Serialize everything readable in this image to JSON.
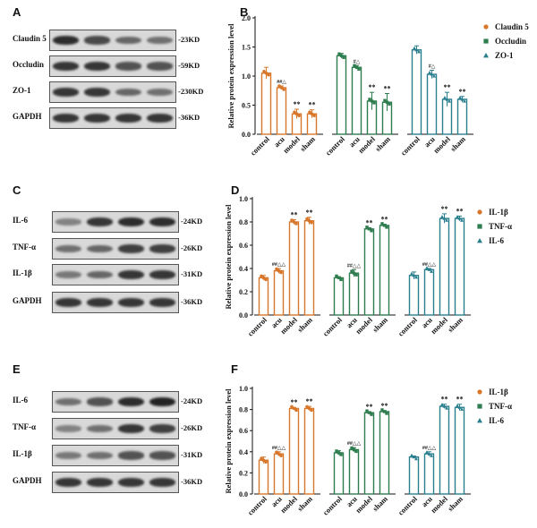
{
  "panels": {
    "A": "A",
    "B": "B",
    "C": "C",
    "D": "D",
    "E": "E",
    "F": "F"
  },
  "blot_x_labels": [
    "control",
    "acu",
    "model",
    "sham"
  ],
  "blot_A": {
    "rows": [
      {
        "label": "Claudin 5",
        "kd": "-23KD"
      },
      {
        "label": "Occludin",
        "kd": "-59KD"
      },
      {
        "label": "ZO-1",
        "kd": "-230KD"
      },
      {
        "label": "GAPDH",
        "kd": "-36KD"
      }
    ],
    "intensity": [
      [
        0.9,
        0.75,
        0.6,
        0.55
      ],
      [
        0.85,
        0.85,
        0.7,
        0.7
      ],
      [
        0.85,
        0.85,
        0.6,
        0.55
      ],
      [
        0.85,
        0.85,
        0.85,
        0.85
      ]
    ]
  },
  "blot_C": {
    "rows": [
      {
        "label": "IL-6",
        "kd": "-24KD"
      },
      {
        "label": "TNF-α",
        "kd": "-26KD"
      },
      {
        "label": "IL-1β",
        "kd": "-31KD"
      },
      {
        "label": "GAPDH",
        "kd": "-36KD"
      }
    ],
    "intensity": [
      [
        0.45,
        0.85,
        0.9,
        0.9
      ],
      [
        0.55,
        0.6,
        0.8,
        0.8
      ],
      [
        0.5,
        0.6,
        0.85,
        0.85
      ],
      [
        0.85,
        0.85,
        0.85,
        0.85
      ]
    ]
  },
  "blot_E": {
    "rows": [
      {
        "label": "IL-6",
        "kd": "-24KD"
      },
      {
        "label": "TNF-α",
        "kd": "-26KD"
      },
      {
        "label": "IL-1β",
        "kd": "-31KD"
      },
      {
        "label": "GAPDH",
        "kd": "-36KD"
      }
    ],
    "intensity": [
      [
        0.55,
        0.7,
        0.9,
        0.95
      ],
      [
        0.45,
        0.55,
        0.85,
        0.8
      ],
      [
        0.5,
        0.55,
        0.7,
        0.7
      ],
      [
        0.85,
        0.85,
        0.85,
        0.85
      ]
    ]
  },
  "colors": {
    "orange": "#d8762a",
    "green": "#2e7d4f",
    "teal": "#2a7f8f",
    "band": "#1a1a1a"
  },
  "chart_data": [
    {
      "type": "bar",
      "panel": "B",
      "ylabel": "Relative protein expression level",
      "ylim": [
        0,
        2.0
      ],
      "yticks": [
        "0.0",
        "0.5",
        "1.0",
        "1.5",
        "2.0"
      ],
      "categories": [
        "control",
        "acu",
        "model",
        "sham"
      ],
      "series": [
        {
          "name": "Claudin 5",
          "marker": "circle",
          "values": [
            1.05,
            0.8,
            0.35,
            0.35
          ],
          "errors": [
            0.1,
            0.03,
            0.08,
            0.07
          ],
          "sig": [
            "",
            "##△",
            "**",
            "**"
          ]
        },
        {
          "name": "Occludin",
          "marker": "square",
          "values": [
            1.35,
            1.15,
            0.57,
            0.55
          ],
          "errors": [
            0.04,
            0.03,
            0.15,
            0.15
          ],
          "sig": [
            "",
            "#△",
            "**",
            "**"
          ]
        },
        {
          "name": "ZO-1",
          "marker": "triangle",
          "values": [
            1.45,
            1.03,
            0.6,
            0.6
          ],
          "errors": [
            0.07,
            0.07,
            0.12,
            0.05
          ],
          "sig": [
            "",
            "#△",
            "**",
            "**"
          ]
        }
      ]
    },
    {
      "type": "bar",
      "panel": "D",
      "ylabel": "Relative protein expression level",
      "ylim": [
        0,
        1.0
      ],
      "yticks": [
        "0.0",
        "0.2",
        "0.4",
        "0.6",
        "0.8",
        "1.0"
      ],
      "categories": [
        "control",
        "acu",
        "model",
        "sham"
      ],
      "series": [
        {
          "name": "IL-1β",
          "marker": "circle",
          "values": [
            0.32,
            0.38,
            0.8,
            0.81
          ],
          "errors": [
            0.02,
            0.02,
            0.02,
            0.03
          ],
          "sig": [
            "",
            "##△△",
            "**",
            "**"
          ]
        },
        {
          "name": "TNF-α",
          "marker": "square",
          "values": [
            0.32,
            0.36,
            0.74,
            0.77
          ],
          "errors": [
            0.01,
            0.03,
            0.01,
            0.01
          ],
          "sig": [
            "",
            "##△△",
            "**",
            "**"
          ]
        },
        {
          "name": "IL-6",
          "marker": "triangle",
          "values": [
            0.34,
            0.39,
            0.83,
            0.83
          ],
          "errors": [
            0.03,
            0.01,
            0.04,
            0.02
          ],
          "sig": [
            "",
            "##△△",
            "**",
            "**"
          ]
        }
      ]
    },
    {
      "type": "bar",
      "panel": "F",
      "ylabel": "Relative protein expression level",
      "ylim": [
        0,
        1.0
      ],
      "yticks": [
        "0.0",
        "0.2",
        "0.4",
        "0.6",
        "0.8",
        "1.0"
      ],
      "categories": [
        "control",
        "acu",
        "model",
        "sham"
      ],
      "series": [
        {
          "name": "IL-1β",
          "marker": "circle",
          "values": [
            0.32,
            0.38,
            0.81,
            0.81
          ],
          "errors": [
            0.03,
            0.02,
            0.01,
            0.02
          ],
          "sig": [
            "",
            "##△△",
            "**",
            "**"
          ]
        },
        {
          "name": "TNF-α",
          "marker": "square",
          "values": [
            0.39,
            0.42,
            0.77,
            0.78
          ],
          "errors": [
            0.02,
            0.02,
            0.01,
            0.01
          ],
          "sig": [
            "",
            "##△△",
            "**",
            "**"
          ]
        },
        {
          "name": "IL-6",
          "marker": "triangle",
          "values": [
            0.35,
            0.38,
            0.83,
            0.82
          ],
          "errors": [
            0.01,
            0.02,
            0.02,
            0.03
          ],
          "sig": [
            "",
            "##△△",
            "**",
            "**"
          ]
        }
      ]
    }
  ]
}
